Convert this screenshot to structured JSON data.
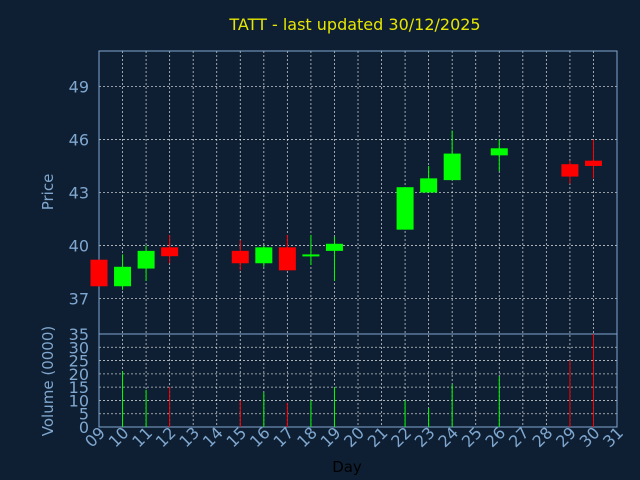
{
  "chart_data": {
    "type": "candlestick",
    "title": "TATT - last updated 30/12/2025",
    "xlabel": "Day",
    "ylabel": "Price",
    "volume_label": "Volume (0000)",
    "grid": true,
    "price_range": [
      35,
      51
    ],
    "price_ticks": [
      35,
      37,
      40,
      43,
      46,
      49
    ],
    "volume_range": [
      0,
      35
    ],
    "volume_ticks": [
      0,
      5,
      10,
      15,
      20,
      25,
      30
    ],
    "x_range": [
      9,
      31
    ],
    "x_ticks": [
      "09",
      "10",
      "11",
      "12",
      "13",
      "14",
      "15",
      "16",
      "17",
      "18",
      "19",
      "20",
      "21",
      "22",
      "23",
      "24",
      "25",
      "26",
      "27",
      "28",
      "29",
      "30",
      "31"
    ],
    "colors": {
      "background": "#0f1f33",
      "title": "#e6e600",
      "axis_text": "#7fa7cf",
      "xlabel": "#000000",
      "up": "#00ff00",
      "down": "#ff0000",
      "grid": "#ffffff",
      "frame": "#7fa7cf"
    },
    "candles": [
      {
        "day": 9,
        "open": 39.2,
        "high": 39.2,
        "low": 37.7,
        "close": 37.7,
        "volume": 0
      },
      {
        "day": 10,
        "open": 37.7,
        "high": 39.5,
        "low": 37.5,
        "close": 38.8,
        "volume": 21
      },
      {
        "day": 11,
        "open": 38.7,
        "high": 40.0,
        "low": 38.0,
        "close": 39.7,
        "volume": 14
      },
      {
        "day": 12,
        "open": 39.9,
        "high": 40.6,
        "low": 39.0,
        "close": 39.4,
        "volume": 15
      },
      {
        "day": 15,
        "open": 39.7,
        "high": 40.3,
        "low": 38.6,
        "close": 39.0,
        "volume": 10
      },
      {
        "day": 16,
        "open": 39.0,
        "high": 40.0,
        "low": 38.8,
        "close": 39.9,
        "volume": 13
      },
      {
        "day": 17,
        "open": 39.9,
        "high": 40.6,
        "low": 38.6,
        "close": 38.6,
        "volume": 9
      },
      {
        "day": 18,
        "open": 39.5,
        "high": 40.6,
        "low": 38.9,
        "close": 39.5,
        "volume": 10
      },
      {
        "day": 19,
        "open": 39.7,
        "high": 40.5,
        "low": 38.0,
        "close": 40.1,
        "volume": 15
      },
      {
        "day": 22,
        "open": 40.9,
        "high": 43.3,
        "low": 40.9,
        "close": 43.3,
        "volume": 10
      },
      {
        "day": 23,
        "open": 43.0,
        "high": 44.5,
        "low": 43.0,
        "close": 43.8,
        "volume": 7
      },
      {
        "day": 24,
        "open": 43.7,
        "high": 46.5,
        "low": 43.7,
        "close": 45.2,
        "volume": 16
      },
      {
        "day": 26,
        "open": 45.1,
        "high": 46.0,
        "low": 44.2,
        "close": 45.5,
        "volume": 19
      },
      {
        "day": 29,
        "open": 44.6,
        "high": 44.8,
        "low": 43.5,
        "close": 43.9,
        "volume": 25
      },
      {
        "day": 30,
        "open": 44.8,
        "high": 46.0,
        "low": 43.8,
        "close": 44.5,
        "volume": 35
      }
    ]
  }
}
